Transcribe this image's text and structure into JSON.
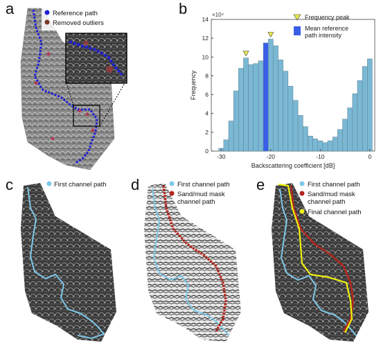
{
  "panels": {
    "a": {
      "letter": "a",
      "legend": [
        "Reference path",
        "Removed outliers"
      ]
    },
    "b": {
      "letter": "b"
    },
    "c": {
      "letter": "c",
      "legend": [
        "First channel path"
      ]
    },
    "d": {
      "letter": "d",
      "legend": [
        "First channel path",
        "Sand/mud mask",
        "channel path"
      ]
    },
    "e": {
      "letter": "e",
      "legend": [
        "First channel path",
        "Sand/mud mask",
        "channel path",
        "Final channel path"
      ]
    }
  },
  "colors": {
    "reference_path": "#1f1fd6",
    "removed_outliers": "#7a3a24",
    "bars": "#7ab8d4",
    "mean_bar": "#3b5ee8",
    "peak_marker": "#e8e84a",
    "first_channel": "#7ec8e8",
    "sand_mud": "#b3261e",
    "final_channel": "#f2f20a",
    "sar_dark": "#2a2a2a",
    "sar_light": "#bdbdbd"
  },
  "chart_data": {
    "type": "bar",
    "xlabel": "Backscattering coefficient [dB]",
    "ylabel": "Frequency",
    "y_multiplier": "×10⁴",
    "xlim": [
      -32,
      1
    ],
    "ylim": [
      0,
      14
    ],
    "xticks": [
      -30,
      -20,
      -10,
      0
    ],
    "yticks": [
      0,
      2,
      4,
      6,
      8,
      10,
      12,
      14
    ],
    "bin_width": 1,
    "x": [
      -30,
      -29,
      -28,
      -27,
      -26,
      -25,
      -24,
      -23,
      -22,
      -21,
      -20,
      -19,
      -18,
      -17,
      -16,
      -15,
      -14,
      -13,
      -12,
      -11,
      -10,
      -9,
      -8,
      -7,
      -6,
      -5,
      -4,
      -3,
      -2,
      -1,
      0
    ],
    "values": [
      0.3,
      1.2,
      3.2,
      6.4,
      8.8,
      9.9,
      9.2,
      9.3,
      9.6,
      11.5,
      11.9,
      11.2,
      9.7,
      8.5,
      6.9,
      5.4,
      3.8,
      2.6,
      1.6,
      1.3,
      1.1,
      0.9,
      1.1,
      1.5,
      2.3,
      3.4,
      4.6,
      6.1,
      7.5,
      9.0,
      9.8
    ],
    "mean_bin_x": -21,
    "peaks": [
      -25,
      -20
    ],
    "legend": {
      "peak": "Frequency peak",
      "mean": "Mean reference path intensity"
    },
    "legend_position": "top-right"
  }
}
